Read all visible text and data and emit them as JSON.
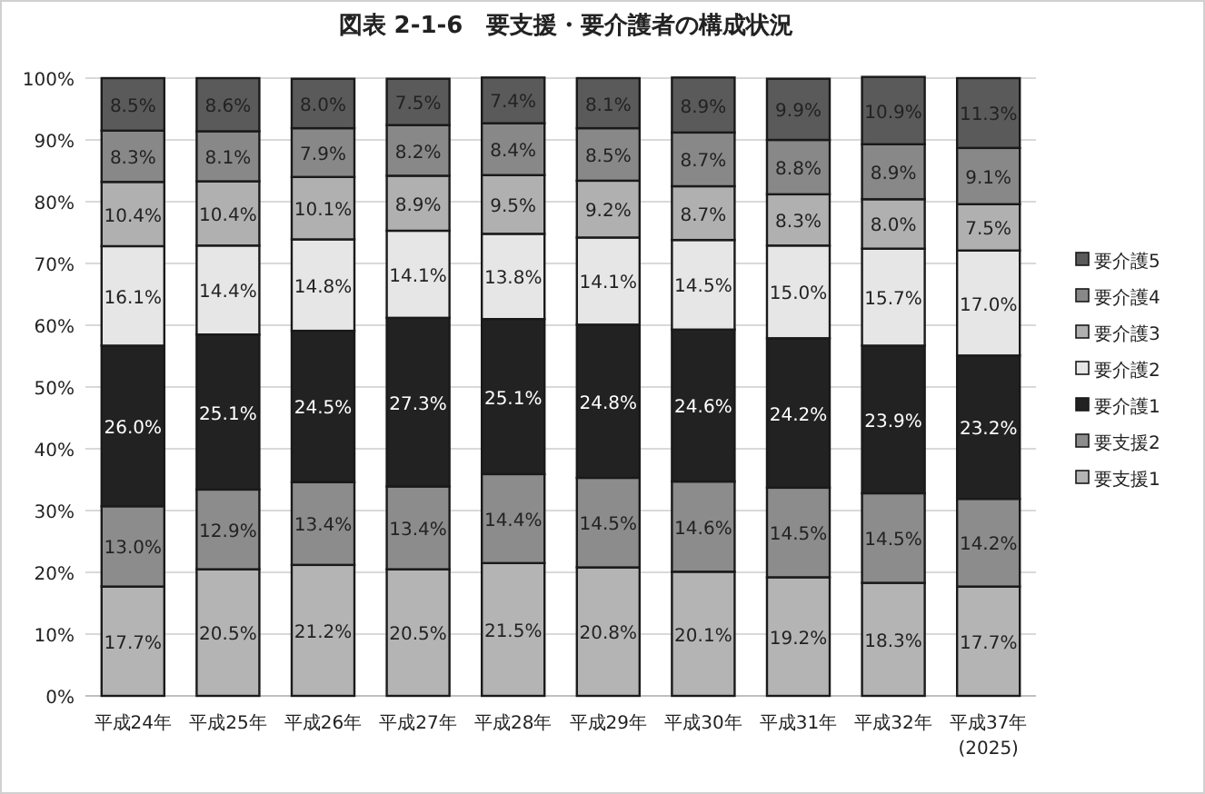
{
  "chart_data": {
    "type": "bar",
    "stacked": true,
    "title": "図表 2-1-6　要支援・要介護者の構成状況",
    "categories": [
      "平成24年",
      "平成25年",
      "平成26年",
      "平成27年",
      "平成28年",
      "平成29年",
      "平成30年",
      "平成31年",
      "平成32年",
      "平成37年\n(2025)"
    ],
    "ylim": [
      0,
      100
    ],
    "yticks": [
      {
        "value": 0,
        "label": "0%"
      },
      {
        "value": 10,
        "label": "10%"
      },
      {
        "value": 20,
        "label": "20%"
      },
      {
        "value": 30,
        "label": "30%"
      },
      {
        "value": 40,
        "label": "40%"
      },
      {
        "value": 50,
        "label": "50%"
      },
      {
        "value": 60,
        "label": "60%"
      },
      {
        "value": 70,
        "label": "70%"
      },
      {
        "value": 80,
        "label": "80%"
      },
      {
        "value": 90,
        "label": "90%"
      },
      {
        "value": 100,
        "label": "100%"
      }
    ],
    "grid": "y",
    "legend": "right",
    "series": [
      {
        "name": "要支援1",
        "color": "#b4b4b4",
        "values": [
          17.7,
          20.5,
          21.2,
          20.5,
          21.5,
          20.8,
          20.1,
          19.2,
          18.3,
          17.7
        ],
        "value_labels": [
          "17.7%",
          "20.5%",
          "21.2%",
          "20.5%",
          "21.5%",
          "20.8%",
          "20.1%",
          "19.2%",
          "18.3%",
          "17.7%"
        ]
      },
      {
        "name": "要支援2",
        "color": "#8c8c8c",
        "values": [
          13.0,
          12.9,
          13.4,
          13.4,
          14.4,
          14.5,
          14.6,
          14.5,
          14.5,
          14.2
        ],
        "value_labels": [
          "13.0%",
          "12.9%",
          "13.4%",
          "13.4%",
          "14.4%",
          "14.5%",
          "14.6%",
          "14.5%",
          "14.5%",
          "14.2%"
        ]
      },
      {
        "name": "要介護1",
        "color": "#222222",
        "values": [
          26.0,
          25.1,
          24.5,
          27.3,
          25.1,
          24.8,
          24.6,
          24.2,
          23.9,
          23.2
        ],
        "value_labels": [
          "26.0%",
          "25.1%",
          "24.5%",
          "27.3%",
          "25.1%",
          "24.8%",
          "24.6%",
          "24.2%",
          "23.9%",
          "23.2%"
        ]
      },
      {
        "name": "要介護2",
        "color": "#e6e6e6",
        "values": [
          16.1,
          14.4,
          14.8,
          14.1,
          13.8,
          14.1,
          14.5,
          15.0,
          15.7,
          17.0
        ],
        "value_labels": [
          "16.1%",
          "14.4%",
          "14.8%",
          "14.1%",
          "13.8%",
          "14.1%",
          "14.5%",
          "15.0%",
          "15.7%",
          "17.0%"
        ]
      },
      {
        "name": "要介護3",
        "color": "#b0b0b0",
        "values": [
          10.4,
          10.4,
          10.1,
          8.9,
          9.5,
          9.2,
          8.7,
          8.3,
          8.0,
          7.5
        ],
        "value_labels": [
          "10.4%",
          "10.4%",
          "10.1%",
          "8.9%",
          "9.5%",
          "9.2%",
          "8.7%",
          "8.3%",
          "8.0%",
          "7.5%"
        ]
      },
      {
        "name": "要介護4",
        "color": "#888888",
        "values": [
          8.3,
          8.1,
          7.9,
          8.2,
          8.4,
          8.5,
          8.7,
          8.8,
          8.9,
          9.1
        ],
        "value_labels": [
          "8.3%",
          "8.1%",
          "7.9%",
          "8.2%",
          "8.4%",
          "8.5%",
          "8.7%",
          "8.8%",
          "8.9%",
          "9.1%"
        ]
      },
      {
        "name": "要介護5",
        "color": "#5a5a5a",
        "values": [
          8.5,
          8.6,
          8.0,
          7.5,
          7.4,
          8.1,
          8.9,
          9.9,
          10.9,
          11.3
        ],
        "value_labels": [
          "8.5%",
          "8.6%",
          "8.0%",
          "7.5%",
          "7.4%",
          "8.1%",
          "8.9%",
          "9.9%",
          "10.9%",
          "11.3%"
        ]
      }
    ]
  }
}
